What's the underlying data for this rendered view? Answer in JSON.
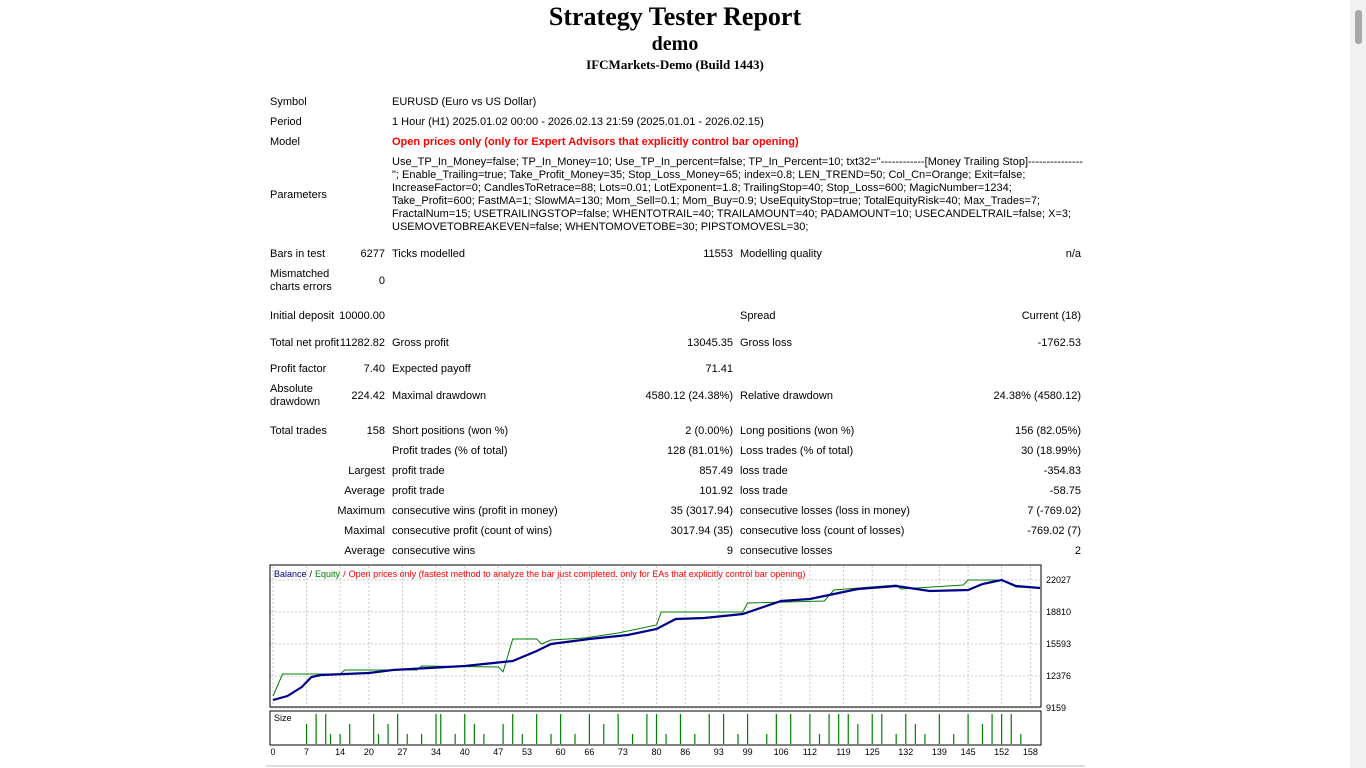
{
  "header": {
    "title": "Strategy Tester Report",
    "account": "demo",
    "server": "IFCMarkets-Demo (Build 1443)"
  },
  "info_rows": [
    [
      "Symbol",
      "EURUSD (Euro vs US Dollar)"
    ],
    [
      "Period",
      "1 Hour (H1) 2025.01.02 00:00 - 2026.02.13 21:59 (2025.01.01 - 2026.02.15)"
    ],
    [
      "Model",
      "Open prices only (only for Expert Advisors that explicitly control bar opening)"
    ],
    [
      "Parameters",
      "Use_TP_In_Money=false; TP_In_Money=10; Use_TP_In_percent=false; TP_In_Percent=10; txt32=\"------------[Money Trailing Stop]---------------\"; Enable_Trailing=true; Take_Profit_Money=35; Stop_Loss_Money=65; index=0.8; LEN_TREND=50; Col_Cn=Orange; Exit=false; IncreaseFactor=0; CandlesToRetrace=88; Lots=0.01; LotExponent=1.8; TrailingStop=40; Stop_Loss=600; MagicNumber=1234; Take_Profit=600; FastMA=1; SlowMA=130; Mom_Sell=0.1; Mom_Buy=0.9; UseEquityStop=true; TotalEquityRisk=40; Max_Trades=7; FractalNum=15; USETRAILINGSTOP=false; WHENTOTRAIL=40; TRAILAMOUNT=40; PADAMOUNT=10; USECANDELTRAIL=false; X=3; USEMOVETOBREAKEVEN=false; WHENTOMOVETOBE=30; PIPSTOMOVESL=30;"
    ]
  ],
  "stats_rows": [
    [
      "Bars in test",
      "6277",
      "Ticks modelled",
      "11553",
      "Modelling quality",
      "n/a"
    ],
    [
      "Mismatched charts errors",
      "0",
      null,
      null,
      null,
      null
    ],
    [
      "Initial deposit",
      "10000.00",
      null,
      null,
      "Spread",
      "Current (18)"
    ],
    [
      "Total net profit",
      "11282.82",
      "Gross profit",
      "13045.35",
      "Gross loss",
      "-1762.53"
    ],
    [
      "Profit factor",
      "7.40",
      "Expected payoff",
      "71.41",
      null,
      null
    ],
    [
      "Absolute drawdown",
      "224.42",
      "Maximal drawdown",
      "4580.12 (24.38%)",
      "Relative drawdown",
      "24.38% (4580.12)"
    ],
    [
      "Total trades",
      "158",
      "Short positions (won %)",
      "2 (0.00%)",
      "Long positions (won %)",
      "156 (82.05%)"
    ],
    [
      null,
      null,
      "Profit trades (% of total)",
      "128 (81.01%)",
      "Loss trades (% of total)",
      "30 (18.99%)"
    ],
    [
      null,
      "Largest",
      "profit trade",
      "857.49",
      "loss trade",
      "-354.83"
    ],
    [
      null,
      "Average",
      "profit trade",
      "101.92",
      "loss trade",
      "-58.75"
    ],
    [
      null,
      "Maximum",
      "consecutive wins (profit in money)",
      "35 (3017.94)",
      "consecutive losses (loss in money)",
      "7 (-769.02)"
    ],
    [
      null,
      "Maximal",
      "consecutive profit (count of wins)",
      "3017.94 (35)",
      "consecutive loss (count of losses)",
      "-769.02 (7)"
    ],
    [
      null,
      "Average",
      "consecutive wins",
      "9",
      "consecutive losses",
      "2"
    ]
  ],
  "graph": {
    "type": "line",
    "legend_separator": "/",
    "model_note": "Open prices only (fastest method to analyze the bar just completed. only for EAs that explicitly control bar opening)",
    "xlim": [
      0,
      160
    ],
    "ylim": [
      9159,
      23435
    ],
    "xticks": [
      0,
      7,
      14,
      20,
      27,
      34,
      40,
      47,
      53,
      60,
      66,
      73,
      80,
      86,
      93,
      99,
      106,
      112,
      119,
      125,
      132,
      139,
      145,
      152,
      158
    ],
    "yticks": [
      9159,
      12376,
      15593,
      18810,
      22027
    ],
    "grid": true,
    "series": [
      {
        "name": "Balance",
        "color": "#00008b",
        "x": [
          0,
          3,
          6,
          8,
          10,
          20,
          25,
          40,
          50,
          55,
          58,
          66,
          74,
          80,
          84,
          90,
          98,
          106,
          112,
          117,
          122,
          130,
          137,
          145,
          148,
          152,
          155,
          160
        ],
        "values": [
          9963,
          10365,
          11270,
          12275,
          12476,
          12677,
          12979,
          13381,
          13884,
          14889,
          15593,
          16096,
          16498,
          17101,
          18106,
          18207,
          18609,
          19916,
          20117,
          20619,
          21122,
          21423,
          20920,
          21021,
          21624,
          22027,
          21423,
          21223
        ]
      },
      {
        "name": "Equity",
        "color": "#008000",
        "x": [
          0,
          2,
          14,
          15,
          30,
          31,
          47,
          48,
          50,
          51,
          55,
          56,
          58,
          65,
          72,
          80,
          81,
          98,
          99,
          115,
          117,
          130,
          131,
          144,
          145,
          148,
          152,
          155,
          160
        ],
        "values": [
          10365,
          12577,
          12577,
          12979,
          12979,
          13381,
          13280,
          12800,
          16096,
          16096,
          16096,
          15593,
          16000,
          16196,
          16699,
          17503,
          18810,
          18810,
          19714,
          19916,
          21021,
          21524,
          21122,
          21524,
          22027,
          22027,
          22027,
          21323,
          21223
        ]
      }
    ],
    "size": {
      "name": "Size",
      "color": "#008000",
      "ylim": [
        0,
        3
      ],
      "x": [
        7,
        9,
        11,
        12,
        14,
        16,
        21,
        22,
        24,
        26,
        28,
        31,
        34,
        35,
        38,
        40,
        42,
        44,
        48,
        50,
        52,
        55,
        58,
        60,
        63,
        66,
        69,
        72,
        75,
        78,
        80,
        82,
        85,
        88,
        91,
        94,
        97,
        99,
        103,
        105,
        108,
        112,
        114,
        116,
        118,
        120,
        122,
        125,
        127,
        130,
        132,
        134,
        136,
        139,
        142,
        145,
        148,
        150,
        152,
        154,
        156
      ],
      "values": [
        2,
        3,
        3,
        1,
        1,
        2,
        3,
        1,
        2,
        3,
        1,
        1,
        3,
        3,
        1,
        3,
        2,
        1,
        2,
        3,
        1,
        3,
        1,
        3,
        1,
        3,
        2,
        3,
        1,
        3,
        3,
        1,
        3,
        1,
        3,
        3,
        1,
        3,
        1,
        3,
        3,
        3,
        1,
        3,
        3,
        3,
        2,
        3,
        3,
        1,
        3,
        2,
        1,
        3,
        1,
        3,
        2,
        3,
        3,
        3,
        1
      ]
    }
  }
}
